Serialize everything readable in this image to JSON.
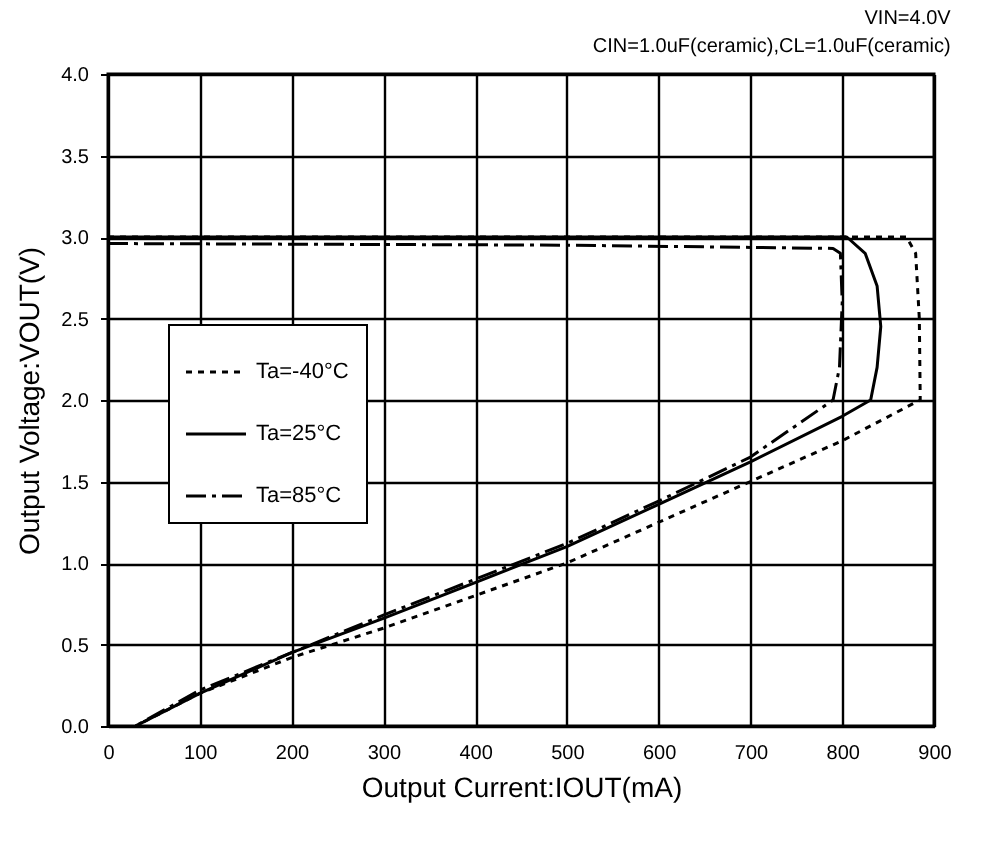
{
  "chart_data": {
    "type": "line",
    "xlabel": "Output Current:IOUT(mA)",
    "ylabel": "Output Voltage:VOUT(V)",
    "annotations": [
      "VIN=4.0V",
      "CIN=1.0uF(ceramic),CL=1.0uF(ceramic)"
    ],
    "xlim": [
      0,
      900
    ],
    "xticks": [
      0,
      100,
      200,
      300,
      400,
      500,
      600,
      700,
      800,
      900
    ],
    "ylim": [
      0,
      4
    ],
    "yticks": [
      {
        "value": 0,
        "label": "0.0"
      },
      {
        "value": 0.5,
        "label": "0.5"
      },
      {
        "value": 1,
        "label": "1.0"
      },
      {
        "value": 1.5,
        "label": "1.5"
      },
      {
        "value": 2,
        "label": "2.0"
      },
      {
        "value": 2.5,
        "label": "2.5"
      },
      {
        "value": 3,
        "label": "3.0"
      },
      {
        "value": 3.5,
        "label": "3.5"
      },
      {
        "value": 4,
        "label": "4.0"
      }
    ],
    "grid": true,
    "legend": "left",
    "series": [
      {
        "name": "Ta=-40°C",
        "color": "#000000",
        "line_style": "dotted",
        "x": [
          0,
          870,
          880,
          884,
          885,
          878,
          800,
          700,
          600,
          500,
          400,
          300,
          200,
          100,
          30
        ],
        "values": [
          3.0,
          3.0,
          2.9,
          2.5,
          2.0,
          1.98,
          1.75,
          1.5,
          1.25,
          1.0,
          0.8,
          0.6,
          0.42,
          0.2,
          0
        ]
      },
      {
        "name": "Ta=25°C",
        "color": "#000000",
        "line_style": "solid",
        "x": [
          0,
          805,
          825,
          838,
          842,
          838,
          831,
          800,
          700,
          600,
          500,
          400,
          300,
          200,
          100,
          30
        ],
        "values": [
          3.0,
          3.0,
          2.9,
          2.7,
          2.45,
          2.2,
          2.0,
          1.9,
          1.62,
          1.36,
          1.1,
          0.88,
          0.66,
          0.45,
          0.2,
          0
        ]
      },
      {
        "name": "Ta=85°C",
        "color": "#000000",
        "line_style": "dashdot",
        "x": [
          0,
          500,
          790,
          798,
          800,
          797,
          790,
          700,
          600,
          500,
          400,
          300,
          200,
          100,
          30
        ],
        "values": [
          2.96,
          2.95,
          2.93,
          2.9,
          2.6,
          2.2,
          2.0,
          1.65,
          1.38,
          1.12,
          0.9,
          0.68,
          0.45,
          0.22,
          0
        ]
      }
    ]
  }
}
